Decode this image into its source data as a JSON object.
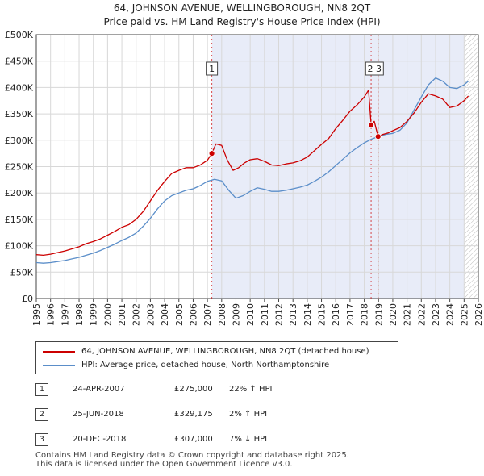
{
  "chart_data": {
    "type": "line",
    "title": "64, JOHNSON AVENUE, WELLINGBOROUGH, NN8 2QT",
    "subtitle": "Price paid vs. HM Land Registry's House Price Index (HPI)",
    "xlabel": "",
    "ylabel": "",
    "x_range": [
      1995,
      2026
    ],
    "ylim": [
      0,
      500000
    ],
    "y_ticks": [
      0,
      50000,
      100000,
      150000,
      200000,
      250000,
      300000,
      350000,
      400000,
      450000,
      500000
    ],
    "y_tick_labels": [
      "£0",
      "£50K",
      "£100K",
      "£150K",
      "£200K",
      "£250K",
      "£300K",
      "£350K",
      "£400K",
      "£450K",
      "£500K"
    ],
    "x_tick_labels": [
      "1995",
      "1996",
      "1997",
      "1998",
      "1999",
      "2000",
      "2001",
      "2002",
      "2003",
      "2004",
      "2005",
      "2006",
      "2007",
      "2008",
      "2009",
      "2010",
      "2011",
      "2012",
      "2013",
      "2014",
      "2015",
      "2016",
      "2017",
      "2018",
      "2019",
      "2020",
      "2021",
      "2022",
      "2023",
      "2024",
      "2025",
      "2026"
    ],
    "grid": true,
    "shaded_span": [
      2007.31,
      2025.0
    ],
    "hatched_from": 2025.0,
    "series": [
      {
        "name": "64, JOHNSON AVENUE, WELLINGBOROUGH, NN8 2QT (detached house)",
        "color": "#cc0000",
        "x": [
          1995.0,
          1995.5,
          1996.0,
          1996.5,
          1997.0,
          1997.5,
          1998.0,
          1998.5,
          1999.0,
          1999.5,
          2000.0,
          2000.5,
          2001.0,
          2001.5,
          2002.0,
          2002.5,
          2003.0,
          2003.5,
          2004.0,
          2004.5,
          2005.0,
          2005.5,
          2006.0,
          2006.5,
          2007.0,
          2007.31,
          2007.6,
          2008.0,
          2008.4,
          2008.8,
          2009.2,
          2009.6,
          2010.0,
          2010.5,
          2011.0,
          2011.5,
          2012.0,
          2012.5,
          2013.0,
          2013.5,
          2014.0,
          2014.5,
          2015.0,
          2015.5,
          2016.0,
          2016.5,
          2017.0,
          2017.5,
          2018.0,
          2018.3,
          2018.48,
          2018.7,
          2018.97,
          2019.3,
          2019.7,
          2020.0,
          2020.5,
          2021.0,
          2021.5,
          2022.0,
          2022.5,
          2023.0,
          2023.5,
          2024.0,
          2024.5,
          2025.0,
          2025.3
        ],
        "values": [
          83000,
          82000,
          84000,
          87000,
          90000,
          94000,
          98000,
          104000,
          108000,
          113000,
          120000,
          127000,
          135000,
          140000,
          150000,
          165000,
          185000,
          205000,
          222000,
          237000,
          243000,
          248000,
          248000,
          253000,
          262000,
          275000,
          293000,
          290000,
          262000,
          243000,
          248000,
          257000,
          263000,
          265000,
          260000,
          253000,
          252000,
          255000,
          257000,
          261000,
          268000,
          280000,
          292000,
          303000,
          322000,
          338000,
          355000,
          367000,
          382000,
          395000,
          329175,
          336000,
          307000,
          311000,
          314000,
          318000,
          324000,
          336000,
          352000,
          372000,
          388000,
          384000,
          378000,
          362000,
          365000,
          375000,
          384000
        ]
      },
      {
        "name": "HPI: Average price, detached house, North Northamptonshire",
        "color": "#5b8ec9",
        "x": [
          1995.0,
          1995.5,
          1996.0,
          1996.5,
          1997.0,
          1997.5,
          1998.0,
          1998.5,
          1999.0,
          1999.5,
          2000.0,
          2000.5,
          2001.0,
          2001.5,
          2002.0,
          2002.5,
          2003.0,
          2003.5,
          2004.0,
          2004.5,
          2005.0,
          2005.5,
          2006.0,
          2006.5,
          2007.0,
          2007.5,
          2008.0,
          2008.5,
          2009.0,
          2009.5,
          2010.0,
          2010.5,
          2011.0,
          2011.5,
          2012.0,
          2012.5,
          2013.0,
          2013.5,
          2014.0,
          2014.5,
          2015.0,
          2015.5,
          2016.0,
          2016.5,
          2017.0,
          2017.5,
          2018.0,
          2018.5,
          2019.0,
          2019.5,
          2020.0,
          2020.5,
          2021.0,
          2021.5,
          2022.0,
          2022.5,
          2023.0,
          2023.5,
          2024.0,
          2024.5,
          2025.0,
          2025.3
        ],
        "values": [
          68000,
          67000,
          68000,
          70000,
          72000,
          75000,
          78000,
          82000,
          86000,
          91000,
          97000,
          103000,
          110000,
          116000,
          124000,
          137000,
          152000,
          170000,
          185000,
          195000,
          200000,
          205000,
          208000,
          214000,
          222000,
          226000,
          223000,
          205000,
          190000,
          195000,
          203000,
          210000,
          207000,
          203000,
          203000,
          205000,
          208000,
          211000,
          215000,
          222000,
          230000,
          240000,
          252000,
          264000,
          276000,
          286000,
          295000,
          302000,
          307000,
          311000,
          313000,
          319000,
          333000,
          358000,
          382000,
          405000,
          418000,
          412000,
          400000,
          398000,
          405000,
          412000
        ]
      }
    ],
    "sales": [
      {
        "label": "1",
        "x": 2007.31,
        "price": 275000,
        "date": "24-APR-2007",
        "price_text": "£275,000",
        "hpi_text": "22% ↑ HPI"
      },
      {
        "label": "2",
        "x": 2018.48,
        "price": 329175,
        "date": "25-JUN-2018",
        "price_text": "£329,175",
        "hpi_text": "2% ↑ HPI"
      },
      {
        "label": "3",
        "x": 2018.97,
        "price": 307000,
        "date": "20-DEC-2018",
        "price_text": "£307,000",
        "hpi_text": "7% ↓ HPI"
      }
    ],
    "marker_box_labels": [
      {
        "text": "1",
        "x": 2007.31
      },
      {
        "text": "2 3",
        "x": 2018.72
      }
    ]
  },
  "legend": {
    "property_label": "64, JOHNSON AVENUE, WELLINGBOROUGH, NN8 2QT (detached house)",
    "hpi_label": "HPI: Average price, detached house, North Northamptonshire"
  },
  "footer": {
    "line1": "Contains HM Land Registry data © Crown copyright and database right 2025.",
    "line2": "This data is licensed under the Open Government Licence v3.0."
  },
  "colors": {
    "property": "#cc0000",
    "hpi": "#5b8ec9",
    "shade": "#e8ecf8",
    "grid": "#d8d8d8",
    "axis": "#444444"
  }
}
